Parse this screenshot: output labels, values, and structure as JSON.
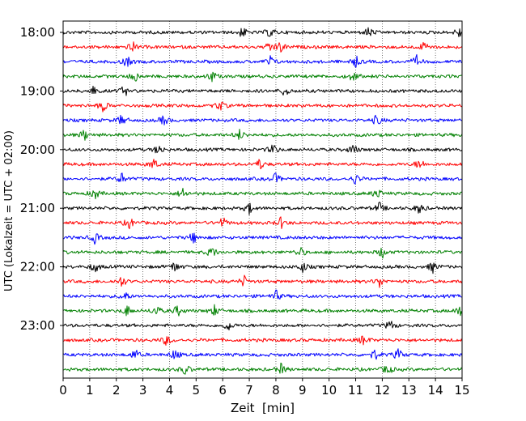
{
  "chart_data": {
    "type": "line",
    "title": "",
    "xlabel": "Zeit  [min]",
    "ylabel": "UTC (Lokalzeit = UTC + 02:00)",
    "xlim": [
      0,
      15
    ],
    "x_ticks": [
      "0",
      "1",
      "2",
      "3",
      "4",
      "5",
      "6",
      "7",
      "8",
      "9",
      "10",
      "11",
      "12",
      "13",
      "14",
      "15"
    ],
    "y_ticks": [
      "18:00",
      "19:00",
      "20:00",
      "21:00",
      "22:00",
      "23:00"
    ],
    "grid": "vertical dotted lines at each minute",
    "trace_interval_minutes": 15,
    "colors": [
      "#000000",
      "#ff0000",
      "#0000ff",
      "#008000"
    ],
    "traces": [
      {
        "time": "18:00",
        "color": "#000000",
        "events": [
          6.75,
          7.8,
          11.5,
          14.9
        ]
      },
      {
        "time": "18:15",
        "color": "#ff0000",
        "events": [
          2.6,
          7.8,
          8.2,
          13.6
        ]
      },
      {
        "time": "18:30",
        "color": "#0000ff",
        "events": [
          2.4,
          7.8,
          11.0,
          13.3
        ]
      },
      {
        "time": "18:45",
        "color": "#008000",
        "events": [
          2.7,
          5.6,
          10.9
        ]
      },
      {
        "time": "19:00",
        "color": "#000000",
        "events": [
          1.1,
          2.3,
          8.35
        ]
      },
      {
        "time": "19:15",
        "color": "#ff0000",
        "events": [
          1.5,
          5.9
        ]
      },
      {
        "time": "19:30",
        "color": "#0000ff",
        "events": [
          2.2,
          3.8,
          11.8
        ]
      },
      {
        "time": "19:45",
        "color": "#008000",
        "events": [
          0.8,
          6.65
        ]
      },
      {
        "time": "20:00",
        "color": "#000000",
        "events": [
          3.6,
          7.9,
          10.9
        ]
      },
      {
        "time": "20:15",
        "color": "#ff0000",
        "events": [
          3.4,
          7.4,
          13.4
        ]
      },
      {
        "time": "20:30",
        "color": "#0000ff",
        "events": [
          2.2,
          8.0,
          11.0
        ]
      },
      {
        "time": "20:45",
        "color": "#008000",
        "events": [
          1.2,
          4.5,
          11.8
        ]
      },
      {
        "time": "21:00",
        "color": "#000000",
        "events": [
          7.0,
          11.9,
          13.4
        ]
      },
      {
        "time": "21:15",
        "color": "#ff0000",
        "events": [
          2.5,
          6.0,
          8.2
        ]
      },
      {
        "time": "21:30",
        "color": "#0000ff",
        "events": [
          1.2,
          4.9
        ]
      },
      {
        "time": "21:45",
        "color": "#008000",
        "events": [
          5.6,
          8.9,
          12.0
        ]
      },
      {
        "time": "22:00",
        "color": "#000000",
        "events": [
          1.2,
          4.2,
          9.0,
          13.9
        ]
      },
      {
        "time": "22:15",
        "color": "#ff0000",
        "events": [
          2.2,
          6.8,
          11.9
        ]
      },
      {
        "time": "22:30",
        "color": "#0000ff",
        "events": [
          2.3,
          8.0
        ]
      },
      {
        "time": "22:45",
        "color": "#008000",
        "events": [
          2.4,
          3.5,
          4.3,
          5.7,
          14.9
        ]
      },
      {
        "time": "23:00",
        "color": "#000000",
        "events": [
          6.2,
          12.3
        ]
      },
      {
        "time": "23:15",
        "color": "#ff0000",
        "events": [
          3.9,
          11.3
        ]
      },
      {
        "time": "23:30",
        "color": "#0000ff",
        "events": [
          2.7,
          4.2,
          11.7,
          12.6
        ]
      },
      {
        "time": "23:45",
        "color": "#008000",
        "events": [
          4.6,
          8.2,
          12.2
        ]
      }
    ]
  }
}
